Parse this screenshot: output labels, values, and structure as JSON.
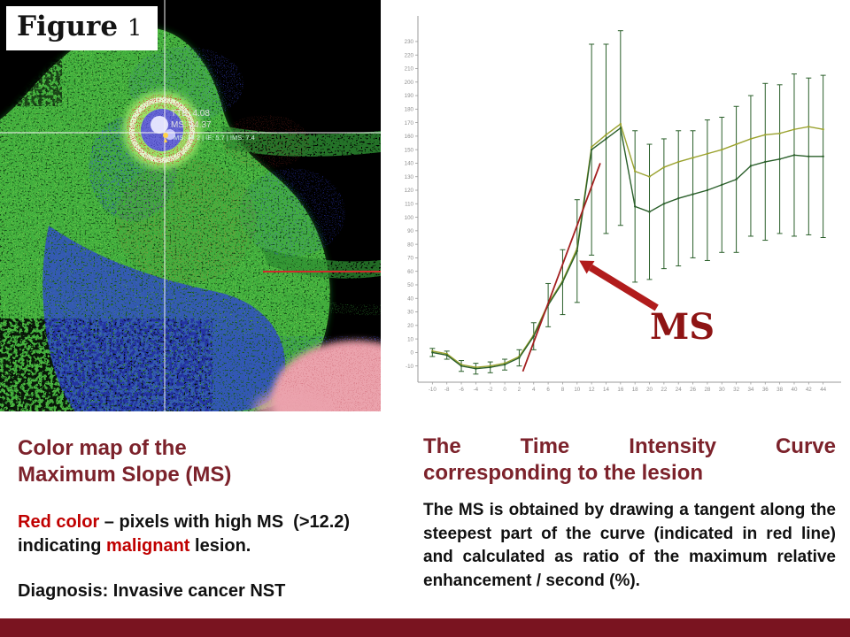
{
  "slide": {
    "figure_label_word": "Figure",
    "figure_label_number": "1"
  },
  "colors": {
    "heading": "#7c222b",
    "accent_red": "#c00000",
    "bottom_bar": "#7a1420",
    "ms_label": "#8e1414"
  },
  "mri": {
    "annotations": {
      "tte": "TTE: 4.08",
      "ms": "MS: 14.37",
      "ms_detail": "MS: 14.2 | IE: 5.7 | IMS: 7.4"
    }
  },
  "left_caption": {
    "heading_line1": "Color map of the",
    "heading_line2": "Maximum Slope (MS)",
    "body_red1": "Red color",
    "body_black1": " – pixels with high MS  (>12.2) indicating ",
    "body_red2": "malignant",
    "body_black2": " lesion.",
    "diagnosis": "Diagnosis: Invasive cancer NST"
  },
  "right_caption": {
    "heading_line1": "The Time Intensity Curve",
    "heading_line2": "corresponding to the lesion",
    "body": "The MS is obtained by drawing a tangent along the steepest part of the curve (indicated in red line) and calculated as ratio of the maximum relative enhancement / second (%)."
  },
  "chart_data": {
    "type": "line",
    "title": "",
    "xlabel": "",
    "ylabel": "",
    "xlim": [
      -12,
      46
    ],
    "ylim": [
      -22,
      245
    ],
    "grid": false,
    "legend": "none",
    "axis_color": "#9a9a9a",
    "x": [
      -10,
      -8,
      -6,
      -4,
      -2,
      0,
      2,
      4,
      6,
      8,
      10,
      12,
      14,
      16,
      18,
      20,
      22,
      24,
      26,
      28,
      30,
      32,
      34,
      36,
      38,
      40,
      42,
      44
    ],
    "y_ticks": [
      -10,
      0,
      10,
      20,
      30,
      40,
      50,
      60,
      70,
      80,
      90,
      100,
      110,
      120,
      130,
      140,
      150,
      160,
      170,
      180,
      190,
      200,
      210,
      220,
      230
    ],
    "series": [
      {
        "color": "#2a5f2a",
        "values": [
          0,
          -2,
          -10,
          -12,
          -11,
          -9,
          -4,
          12,
          35,
          52,
          75,
          150,
          158,
          166,
          108,
          104,
          110,
          114,
          117,
          120,
          124,
          128,
          138,
          141,
          143,
          146,
          145,
          145
        ],
        "errors": [
          3,
          3,
          4,
          4,
          4,
          4,
          6,
          10,
          16,
          24,
          38,
          78,
          70,
          72,
          56,
          50,
          48,
          50,
          47,
          52,
          50,
          54,
          52,
          58,
          55,
          60,
          58,
          60
        ]
      },
      {
        "color": "#9aa22e",
        "values": [
          1,
          -1,
          -9,
          -11,
          -10,
          -8,
          -3,
          13,
          36,
          53,
          77,
          152,
          161,
          169,
          134,
          130,
          137,
          141,
          144,
          147,
          150,
          154,
          158,
          161,
          162,
          165,
          167,
          165
        ],
        "errors": [
          0,
          0,
          0,
          0,
          0,
          0,
          0,
          0,
          0,
          0,
          0,
          0,
          0,
          0,
          0,
          0,
          0,
          0,
          0,
          0,
          0,
          0,
          0,
          0,
          0,
          0,
          0,
          0
        ]
      }
    ],
    "tangent": {
      "x1": 2.5,
      "y1": -14,
      "x2": 13.2,
      "y2": 140,
      "color": "#a32020"
    },
    "arrow": {
      "from": [
        21,
        33
      ],
      "to": [
        10.3,
        68
      ],
      "color": "#b11c1c"
    },
    "ms_label": "MS"
  }
}
